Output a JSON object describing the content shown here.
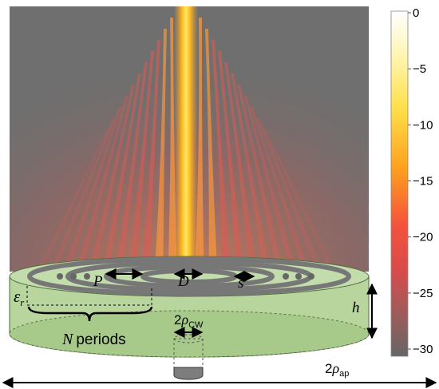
{
  "labels": {
    "period": "P",
    "aperture_diameter": "D",
    "slot_width": "s",
    "permittivity": "ε",
    "permittivity_sub": "r",
    "height": "h",
    "periods_var": "N",
    "periods_word": "periods",
    "waveguide_prefix": "2",
    "waveguide_rho": "ρ",
    "waveguide_sub": "CW",
    "aperture_prefix": "2",
    "aperture_rho": "ρ",
    "aperture_sub": "ap"
  },
  "colorbar": {
    "ticks": [
      "0",
      "−5",
      "−10",
      "−15",
      "−20",
      "−25",
      "−30"
    ],
    "min": -30,
    "max": 0
  },
  "colors": {
    "background_field": "#6f6f6f",
    "substrate": "#b9d7a0",
    "substrate_edge": "#4f6b3c",
    "ring": "#7a7a7a",
    "waveguide": "#8a8a8a"
  }
}
